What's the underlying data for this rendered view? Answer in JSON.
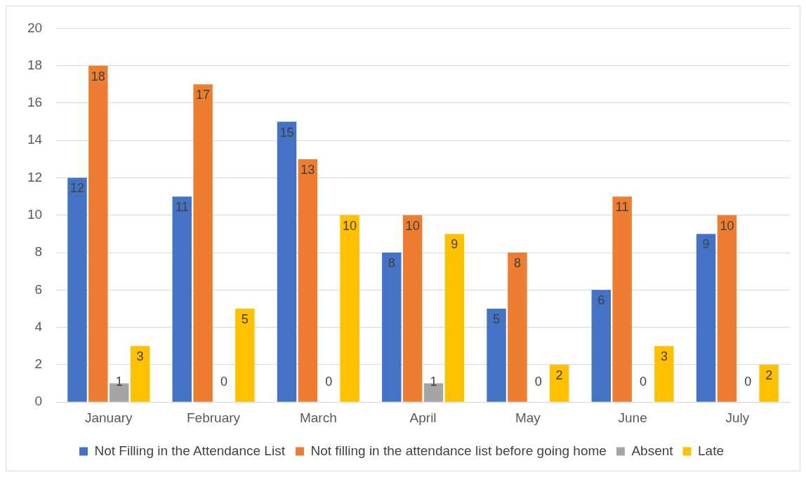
{
  "chart_data": {
    "type": "bar",
    "categories": [
      "January",
      "February",
      "March",
      "April",
      "May",
      "June",
      "July"
    ],
    "series": [
      {
        "name": "Not Filling in the Attendance List",
        "color": "#4472c4",
        "values": [
          12,
          11,
          15,
          8,
          5,
          6,
          9
        ]
      },
      {
        "name": "Not filling in the attendance list before going home",
        "color": "#ed7d31",
        "values": [
          18,
          17,
          13,
          10,
          8,
          11,
          10
        ]
      },
      {
        "name": "Absent",
        "color": "#a5a5a5",
        "values": [
          1,
          0,
          0,
          1,
          0,
          0,
          0
        ]
      },
      {
        "name": "Late",
        "color": "#ffc000",
        "values": [
          3,
          5,
          10,
          9,
          2,
          3,
          2
        ]
      }
    ],
    "ylim": [
      0,
      20
    ],
    "yticks": [
      0,
      2,
      4,
      6,
      8,
      10,
      12,
      14,
      16,
      18,
      20
    ],
    "grid": "y",
    "legend": "bottom",
    "data_labels": true
  }
}
